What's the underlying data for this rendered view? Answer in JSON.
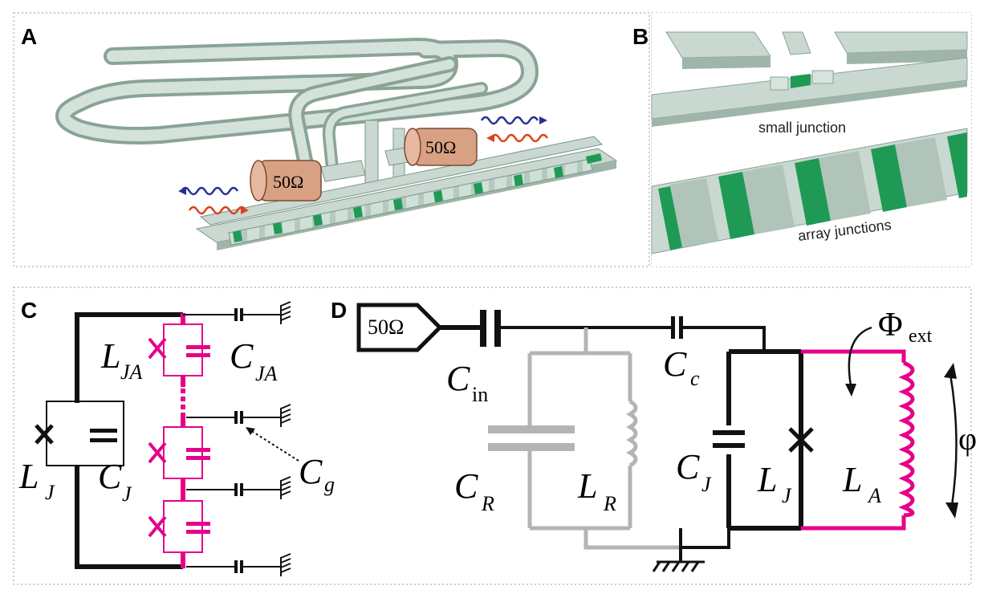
{
  "panels": {
    "A": {
      "letter": "A",
      "resistor_left": "50Ω",
      "resistor_right": "50Ω"
    },
    "B": {
      "letter": "B",
      "label_small": "small junction",
      "label_array": "array junctions"
    },
    "C": {
      "letter": "C",
      "LJ": {
        "main": "L",
        "sub": "J"
      },
      "CJ": {
        "main": "C",
        "sub": "J"
      },
      "LJA": {
        "main": "L",
        "sub": "JA"
      },
      "CJA": {
        "main": "C",
        "sub": "JA"
      },
      "Cg": {
        "main": "C",
        "sub": "g"
      }
    },
    "D": {
      "letter": "D",
      "port": "50Ω",
      "Cin": {
        "main": "C",
        "sub": "in"
      },
      "Cc": {
        "main": "C",
        "sub": "c"
      },
      "CR": {
        "main": "C",
        "sub": "R"
      },
      "LR": {
        "main": "L",
        "sub": "R"
      },
      "CJ": {
        "main": "C",
        "sub": "J"
      },
      "LJ": {
        "main": "L",
        "sub": "J"
      },
      "LA": {
        "main": "L",
        "sub": "A"
      },
      "Phi": {
        "main": "Φ",
        "sub": "ext"
      },
      "phi": "φ"
    }
  },
  "colors": {
    "black": "#111111",
    "magenta": "#e6008a",
    "gray": "#b4b4b4",
    "metal": "#c9d8d0",
    "junction_green": "#1f9a55",
    "resistor_copper": "#d9a184",
    "wave_blue": "#27308f",
    "wave_red": "#d9421c"
  }
}
